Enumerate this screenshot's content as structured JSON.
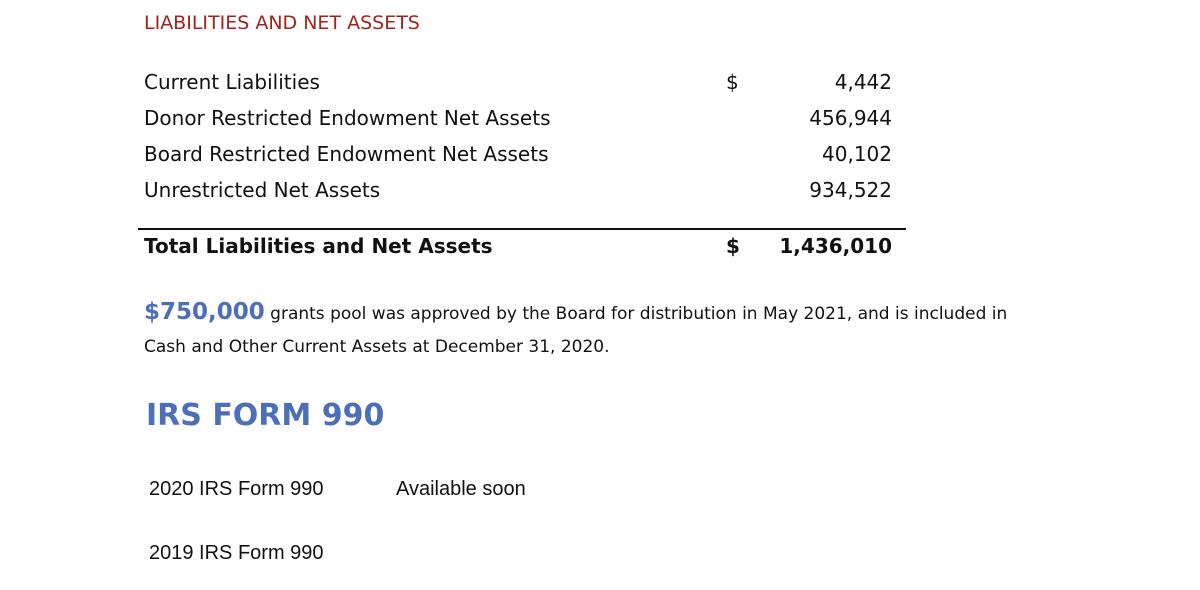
{
  "liabilities": {
    "heading": "LIABILITIES AND NET ASSETS",
    "rows": [
      {
        "label": "Current Liabilities",
        "currency": "$",
        "amount": "4,442"
      },
      {
        "label": "Donor Restricted Endowment Net Assets",
        "currency": "",
        "amount": "456,944"
      },
      {
        "label": "Board Restricted Endowment Net Assets",
        "currency": "",
        "amount": "40,102"
      },
      {
        "label": "Unrestricted Net Assets",
        "currency": "",
        "amount": "934,522"
      }
    ],
    "total": {
      "label": "Total Liabilities and Net Assets",
      "currency": "$",
      "amount": "1,436,010"
    }
  },
  "note": {
    "highlight": "$750,000",
    "text": " grants pool was approved by the Board for distribution in May 2021, and is included in Cash and Other Current Assets at December 31, 2020."
  },
  "irs": {
    "heading": "IRS FORM 990",
    "forms": [
      {
        "label": "2020 IRS Form 990",
        "status": "Available soon"
      },
      {
        "label": "2019 IRS Form 990",
        "status": ""
      }
    ]
  },
  "colors": {
    "heading_red": "#a3231c",
    "accent_blue": "#4d6fb8"
  }
}
